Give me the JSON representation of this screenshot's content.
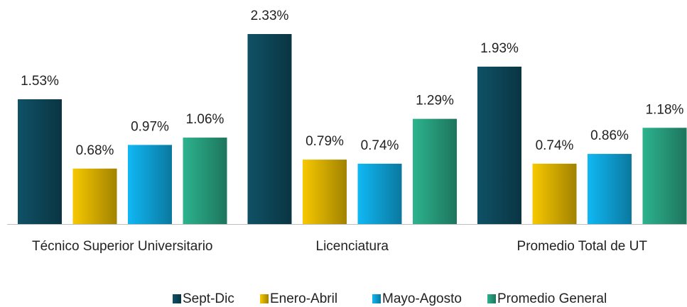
{
  "chart_data": {
    "type": "bar",
    "categories": [
      "Técnico Superior Universitario",
      "Licenciatura",
      "Promedio Total de UT"
    ],
    "series": [
      {
        "name": "Sept-Dic",
        "color": "#0f5166",
        "values": [
          1.53,
          2.33,
          1.93
        ],
        "value_labels": [
          "1.53%",
          "2.33%",
          "1.93%"
        ]
      },
      {
        "name": "Enero-Abril",
        "color": "#f7c800",
        "values": [
          0.68,
          0.79,
          0.74
        ],
        "value_labels": [
          "0.68%",
          "0.79%",
          "0.74%"
        ]
      },
      {
        "name": "Mayo-Agosto",
        "color": "#10b8f4",
        "values": [
          0.97,
          0.74,
          0.86
        ],
        "value_labels": [
          "0.97%",
          "0.74%",
          "0.86%"
        ]
      },
      {
        "name": "Promedio General",
        "color": "#2db38e",
        "values": [
          1.06,
          1.29,
          1.18
        ],
        "value_labels": [
          "1.06%",
          "1.29%",
          "1.18%"
        ]
      }
    ]
  }
}
